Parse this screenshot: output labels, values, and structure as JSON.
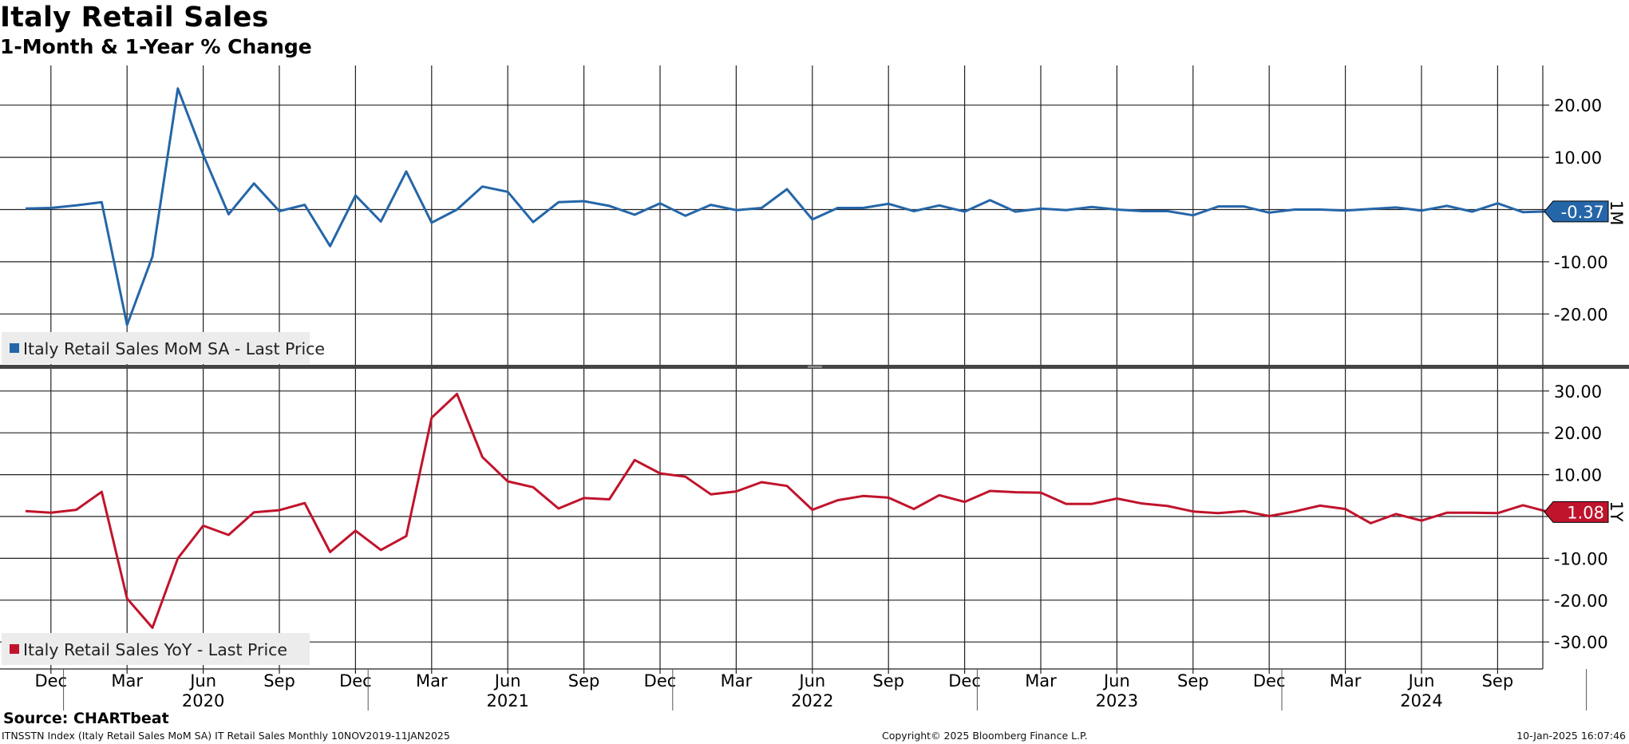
{
  "title": "Italy Retail Sales",
  "subtitle": "1-Month & 1-Year % Change",
  "source": "Source: CHARTbeat",
  "footer": {
    "left": "ITNSSTN Index (Italy Retail Sales MoM SA) IT Retail Sales  Monthly 10NOV2019-11JAN2025",
    "center": "Copyright© 2025 Bloomberg Finance L.P.",
    "right": "10-Jan-2025 16:07:46"
  },
  "colors": {
    "mom": "#2566a8",
    "yoy": "#c0142c"
  },
  "chart_data": [
    {
      "type": "line",
      "panel": "top",
      "series": [
        {
          "name": "Italy Retail Sales MoM SA - Last Price",
          "x": [
            "2019-11",
            "2019-12",
            "2020-01",
            "2020-02",
            "2020-03",
            "2020-04",
            "2020-05",
            "2020-06",
            "2020-07",
            "2020-08",
            "2020-09",
            "2020-10",
            "2020-11",
            "2020-12",
            "2021-01",
            "2021-02",
            "2021-03",
            "2021-04",
            "2021-05",
            "2021-06",
            "2021-07",
            "2021-08",
            "2021-09",
            "2021-10",
            "2021-11",
            "2021-12",
            "2022-01",
            "2022-02",
            "2022-03",
            "2022-04",
            "2022-05",
            "2022-06",
            "2022-07",
            "2022-08",
            "2022-09",
            "2022-10",
            "2022-11",
            "2022-12",
            "2023-01",
            "2023-02",
            "2023-03",
            "2023-04",
            "2023-05",
            "2023-06",
            "2023-07",
            "2023-08",
            "2023-09",
            "2023-10",
            "2023-11",
            "2023-12",
            "2024-01",
            "2024-02",
            "2024-03",
            "2024-04",
            "2024-05",
            "2024-06",
            "2024-07",
            "2024-08",
            "2024-09",
            "2024-10",
            "2024-11"
          ],
          "values": [
            0.2,
            0.3,
            0.8,
            1.4,
            -22.1,
            -9.0,
            23.2,
            10.5,
            -0.9,
            5.0,
            -0.3,
            0.9,
            -7.0,
            2.7,
            -2.3,
            7.3,
            -2.5,
            0.0,
            4.4,
            3.4,
            -2.4,
            1.4,
            1.6,
            0.7,
            -1.0,
            1.2,
            -1.2,
            0.9,
            -0.1,
            0.3,
            3.9,
            -1.9,
            0.3,
            0.3,
            1.1,
            -0.3,
            0.8,
            -0.4,
            1.8,
            -0.4,
            0.2,
            -0.1,
            0.5,
            0.0,
            -0.3,
            -0.3,
            -1.1,
            0.6,
            0.6,
            -0.6,
            0.0,
            0.0,
            -0.2,
            0.1,
            0.4,
            -0.2,
            0.7,
            -0.4,
            1.2,
            -0.5,
            -0.37
          ]
        }
      ],
      "last_value_label": "-0.37",
      "axis_tag": "1M",
      "yticks": [
        "20.00",
        "10.00",
        "0.00",
        "-10.00",
        "-20.00"
      ],
      "ylim": [
        -28,
        27
      ],
      "grid": true,
      "legend_placement": "bottom-left"
    },
    {
      "type": "line",
      "panel": "bottom",
      "series": [
        {
          "name": "Italy Retail Sales YoY - Last Price",
          "x": [
            "2019-11",
            "2019-12",
            "2020-01",
            "2020-02",
            "2020-03",
            "2020-04",
            "2020-05",
            "2020-06",
            "2020-07",
            "2020-08",
            "2020-09",
            "2020-10",
            "2020-11",
            "2020-12",
            "2021-01",
            "2021-02",
            "2021-03",
            "2021-04",
            "2021-05",
            "2021-06",
            "2021-07",
            "2021-08",
            "2021-09",
            "2021-10",
            "2021-11",
            "2021-12",
            "2022-01",
            "2022-02",
            "2022-03",
            "2022-04",
            "2022-05",
            "2022-06",
            "2022-07",
            "2022-08",
            "2022-09",
            "2022-10",
            "2022-11",
            "2022-12",
            "2023-01",
            "2023-02",
            "2023-03",
            "2023-04",
            "2023-05",
            "2023-06",
            "2023-07",
            "2023-08",
            "2023-09",
            "2023-10",
            "2023-11",
            "2023-12",
            "2024-01",
            "2024-02",
            "2024-03",
            "2024-04",
            "2024-05",
            "2024-06",
            "2024-07",
            "2024-08",
            "2024-09",
            "2024-10",
            "2024-11"
          ],
          "values": [
            1.3,
            0.9,
            1.6,
            5.9,
            -19.6,
            -26.6,
            -10.0,
            -2.2,
            -4.4,
            1.0,
            1.5,
            3.2,
            -8.5,
            -3.4,
            -8.0,
            -4.7,
            23.6,
            29.3,
            14.2,
            8.4,
            7.0,
            1.9,
            4.4,
            4.1,
            13.5,
            10.3,
            9.5,
            5.3,
            6.0,
            8.2,
            7.3,
            1.6,
            3.9,
            4.9,
            4.5,
            1.8,
            5.1,
            3.5,
            6.1,
            5.8,
            5.7,
            3.0,
            3.0,
            4.3,
            3.1,
            2.5,
            1.2,
            0.8,
            1.3,
            0.1,
            1.2,
            2.6,
            1.8,
            -1.6,
            0.6,
            -1.0,
            0.9,
            0.9,
            0.8,
            2.7,
            1.08
          ]
        }
      ],
      "last_value_label": "1.08",
      "axis_tag": "1Y",
      "yticks": [
        "30.00",
        "20.00",
        "10.00",
        "0.00",
        "-10.00",
        "-20.00",
        "-30.00"
      ],
      "ylim": [
        -36.5,
        31.5
      ],
      "grid": true,
      "legend_placement": "bottom-left"
    }
  ],
  "x_axis": {
    "month_labels": [
      {
        "t": "2019-12",
        "label": "Dec"
      },
      {
        "t": "2020-03",
        "label": "Mar"
      },
      {
        "t": "2020-06",
        "label": "Jun"
      },
      {
        "t": "2020-09",
        "label": "Sep"
      },
      {
        "t": "2020-12",
        "label": "Dec"
      },
      {
        "t": "2021-03",
        "label": "Mar"
      },
      {
        "t": "2021-06",
        "label": "Jun"
      },
      {
        "t": "2021-09",
        "label": "Sep"
      },
      {
        "t": "2021-12",
        "label": "Dec"
      },
      {
        "t": "2022-03",
        "label": "Mar"
      },
      {
        "t": "2022-06",
        "label": "Jun"
      },
      {
        "t": "2022-09",
        "label": "Sep"
      },
      {
        "t": "2022-12",
        "label": "Dec"
      },
      {
        "t": "2023-03",
        "label": "Mar"
      },
      {
        "t": "2023-06",
        "label": "Jun"
      },
      {
        "t": "2023-09",
        "label": "Sep"
      },
      {
        "t": "2023-12",
        "label": "Dec"
      },
      {
        "t": "2024-03",
        "label": "Mar"
      },
      {
        "t": "2024-06",
        "label": "Jun"
      },
      {
        "t": "2024-09",
        "label": "Sep"
      }
    ],
    "year_labels": [
      {
        "t": "2020-06",
        "label": "2020"
      },
      {
        "t": "2021-06",
        "label": "2021"
      },
      {
        "t": "2022-06",
        "label": "2022"
      },
      {
        "t": "2023-06",
        "label": "2023"
      },
      {
        "t": "2024-06",
        "label": "2024"
      }
    ],
    "year_boundaries": [
      "2020-01",
      "2021-01",
      "2022-01",
      "2023-01",
      "2024-01",
      "2025-01"
    ]
  }
}
